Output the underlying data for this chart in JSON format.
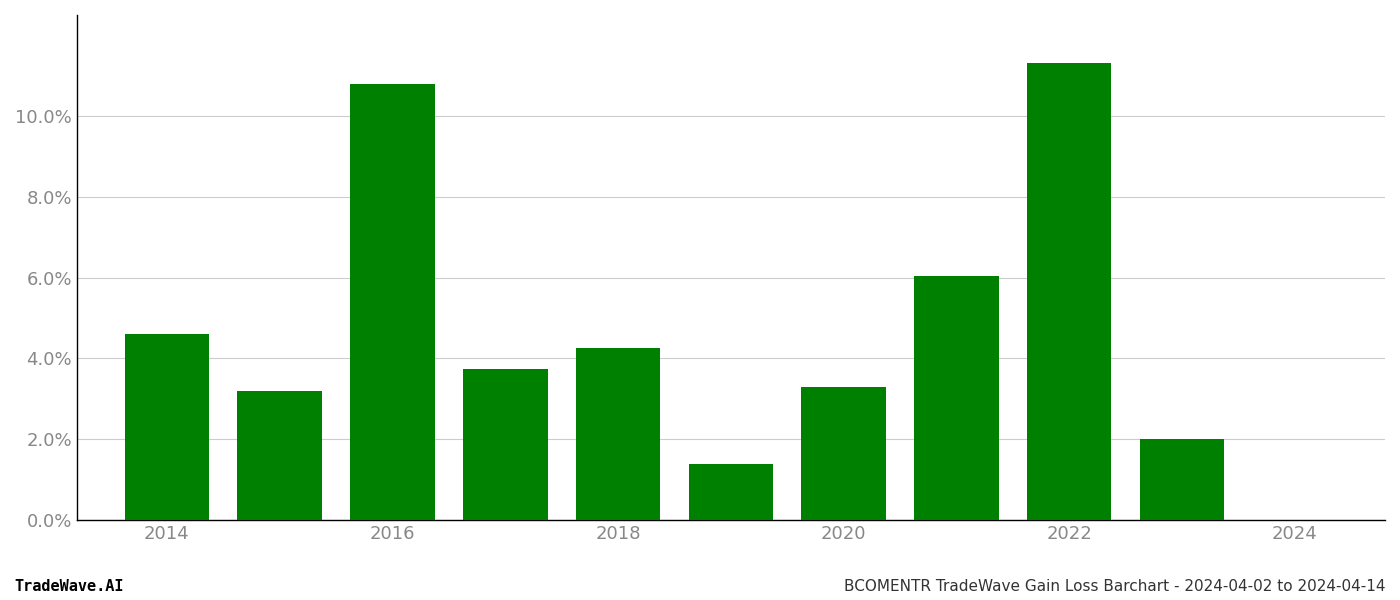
{
  "years": [
    2014,
    2015,
    2016,
    2017,
    2018,
    2019,
    2020,
    2021,
    2022,
    2023,
    2024
  ],
  "values": [
    0.046,
    0.032,
    0.108,
    0.0375,
    0.0425,
    0.014,
    0.033,
    0.0605,
    0.113,
    0.02,
    0.0
  ],
  "bar_color": "#008000",
  "background_color": "#ffffff",
  "grid_color": "#cccccc",
  "axis_label_color": "#888888",
  "title_text": "BCOMENTR TradeWave Gain Loss Barchart - 2024-04-02 to 2024-04-14",
  "watermark_text": "TradeWave.AI",
  "ylim": [
    0,
    0.125
  ],
  "ytick_values": [
    0.0,
    0.02,
    0.04,
    0.06,
    0.08,
    0.1
  ],
  "xtick_labels": [
    2014,
    2016,
    2018,
    2020,
    2022,
    2024
  ],
  "bar_width": 0.75,
  "title_fontsize": 11,
  "watermark_fontsize": 11,
  "tick_fontsize": 13,
  "spine_color": "#000000",
  "left_spine_color": "#000000"
}
